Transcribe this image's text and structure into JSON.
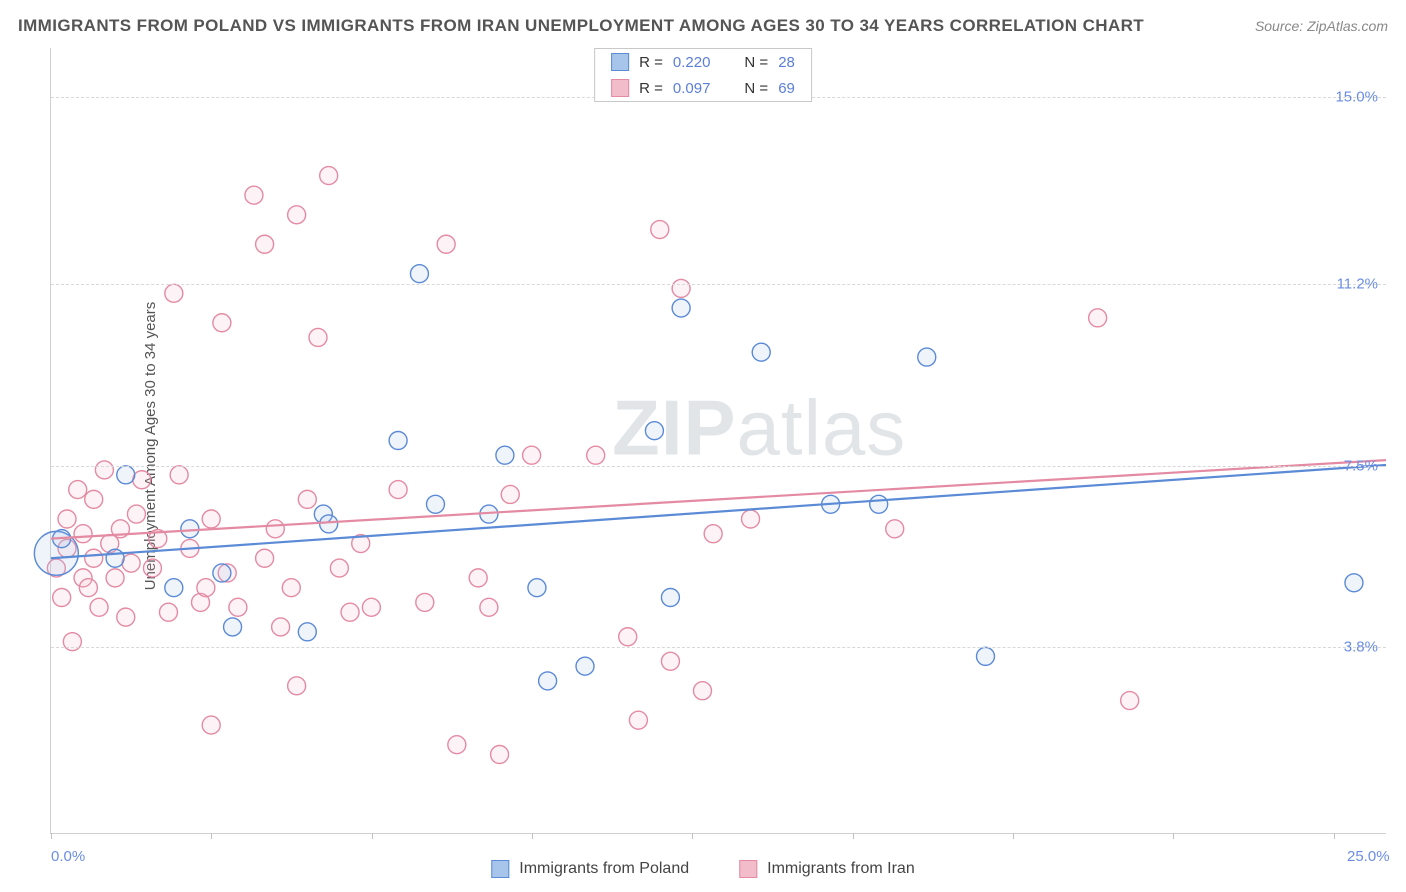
{
  "title": "IMMIGRANTS FROM POLAND VS IMMIGRANTS FROM IRAN UNEMPLOYMENT AMONG AGES 30 TO 34 YEARS CORRELATION CHART",
  "source": "Source: ZipAtlas.com",
  "ylabel": "Unemployment Among Ages 30 to 34 years",
  "watermark_bold": "ZIP",
  "watermark_rest": "atlas",
  "chart": {
    "type": "scatter",
    "xlim": [
      0,
      25
    ],
    "ylim": [
      0,
      16
    ],
    "x_end_labels": [
      {
        "x": 0,
        "text": "0.0%"
      },
      {
        "x": 25,
        "text": "25.0%"
      }
    ],
    "x_ticks": [
      0,
      3,
      6,
      9,
      12,
      15,
      18,
      21,
      24
    ],
    "y_gridlines": [
      {
        "y": 3.8,
        "label": "3.8%"
      },
      {
        "y": 7.5,
        "label": "7.5%"
      },
      {
        "y": 11.2,
        "label": "11.2%"
      },
      {
        "y": 15.0,
        "label": "15.0%"
      }
    ],
    "background_color": "#ffffff",
    "grid_color": "#d8d8d8",
    "axis_color": "#d0d0d0",
    "tick_label_color": "#6b8de3",
    "marker_radius": 9,
    "marker_stroke_width": 1.4,
    "marker_fill_opacity": 0.18,
    "trend_line_width": 2.2,
    "series": [
      {
        "id": "poland",
        "name": "Immigrants from Poland",
        "color_stroke": "#5b8ad6",
        "color_fill": "#a7c4ea",
        "R": "0.220",
        "N": "28",
        "trend": {
          "x1": 0,
          "y1": 5.6,
          "x2": 25,
          "y2": 7.5
        },
        "points": [
          [
            0.1,
            5.7,
            22
          ],
          [
            0.2,
            6.0
          ],
          [
            1.2,
            5.6
          ],
          [
            1.4,
            7.3
          ],
          [
            2.3,
            5.0
          ],
          [
            2.6,
            6.2
          ],
          [
            3.2,
            5.3
          ],
          [
            3.4,
            4.2
          ],
          [
            4.8,
            4.1
          ],
          [
            5.1,
            6.5
          ],
          [
            5.2,
            6.3
          ],
          [
            6.5,
            8.0
          ],
          [
            6.9,
            11.4
          ],
          [
            7.2,
            6.7
          ],
          [
            8.2,
            6.5
          ],
          [
            8.5,
            7.7
          ],
          [
            9.1,
            5.0
          ],
          [
            9.3,
            3.1
          ],
          [
            10.0,
            3.4
          ],
          [
            11.3,
            8.2
          ],
          [
            11.6,
            4.8
          ],
          [
            11.8,
            10.7
          ],
          [
            13.3,
            9.8
          ],
          [
            14.6,
            6.7
          ],
          [
            15.5,
            6.7
          ],
          [
            16.4,
            9.7
          ],
          [
            17.5,
            3.6
          ],
          [
            24.4,
            5.1
          ]
        ]
      },
      {
        "id": "iran",
        "name": "Immigrants from Iran",
        "color_stroke": "#e48aa3",
        "color_fill": "#f2bccb",
        "R": "0.097",
        "N": "69",
        "trend": {
          "x1": 0,
          "y1": 6.0,
          "x2": 25,
          "y2": 7.6
        },
        "points": [
          [
            0.1,
            5.4
          ],
          [
            0.2,
            4.8
          ],
          [
            0.3,
            5.8
          ],
          [
            0.3,
            6.4
          ],
          [
            0.4,
            3.9
          ],
          [
            0.5,
            7.0
          ],
          [
            0.6,
            5.2
          ],
          [
            0.6,
            6.1
          ],
          [
            0.7,
            5.0
          ],
          [
            0.8,
            5.6
          ],
          [
            0.8,
            6.8
          ],
          [
            0.9,
            4.6
          ],
          [
            1.0,
            7.4
          ],
          [
            1.1,
            5.9
          ],
          [
            1.2,
            5.2
          ],
          [
            1.3,
            6.2
          ],
          [
            1.4,
            4.4
          ],
          [
            1.5,
            5.5
          ],
          [
            1.6,
            6.5
          ],
          [
            1.7,
            7.2
          ],
          [
            1.9,
            5.4
          ],
          [
            2.0,
            6.0
          ],
          [
            2.2,
            4.5
          ],
          [
            2.3,
            11.0
          ],
          [
            2.4,
            7.3
          ],
          [
            2.6,
            5.8
          ],
          [
            2.8,
            4.7
          ],
          [
            2.9,
            5.0
          ],
          [
            3.0,
            6.4
          ],
          [
            3.0,
            2.2
          ],
          [
            3.2,
            10.4
          ],
          [
            3.3,
            5.3
          ],
          [
            3.5,
            4.6
          ],
          [
            3.8,
            13.0
          ],
          [
            4.0,
            5.6
          ],
          [
            4.0,
            12.0
          ],
          [
            4.2,
            6.2
          ],
          [
            4.3,
            4.2
          ],
          [
            4.5,
            5.0
          ],
          [
            4.6,
            12.6
          ],
          [
            4.6,
            3.0
          ],
          [
            4.8,
            6.8
          ],
          [
            5.0,
            10.1
          ],
          [
            5.2,
            13.4
          ],
          [
            5.4,
            5.4
          ],
          [
            5.6,
            4.5
          ],
          [
            5.8,
            5.9
          ],
          [
            6.0,
            4.6
          ],
          [
            6.5,
            7.0
          ],
          [
            7.0,
            4.7
          ],
          [
            7.4,
            12.0
          ],
          [
            7.6,
            1.8
          ],
          [
            8.0,
            5.2
          ],
          [
            8.2,
            4.6
          ],
          [
            8.4,
            1.6
          ],
          [
            8.6,
            6.9
          ],
          [
            9.0,
            7.7
          ],
          [
            10.2,
            7.7
          ],
          [
            10.8,
            4.0
          ],
          [
            11.0,
            2.3
          ],
          [
            11.4,
            12.3
          ],
          [
            11.6,
            3.5
          ],
          [
            11.8,
            11.1
          ],
          [
            12.2,
            2.9
          ],
          [
            12.4,
            6.1
          ],
          [
            13.1,
            6.4
          ],
          [
            15.8,
            6.2
          ],
          [
            19.6,
            10.5
          ],
          [
            20.2,
            2.7
          ]
        ]
      }
    ]
  },
  "legend_top_label_R": "R =",
  "legend_top_label_N": "N ="
}
